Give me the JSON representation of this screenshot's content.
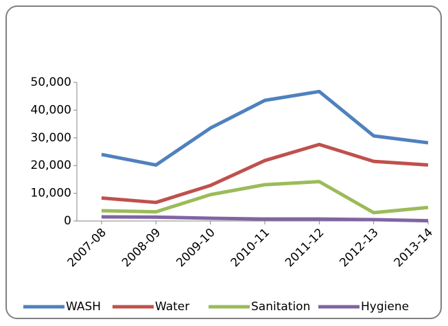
{
  "chart_data": {
    "type": "line",
    "categories": [
      "2007-08",
      "2008-09",
      "2009-10",
      "2010-11",
      "2011-12",
      "2012-13",
      "2013-14"
    ],
    "series": [
      {
        "name": "WASH",
        "color": "#4f81bd",
        "values": [
          24000,
          20200,
          33500,
          43500,
          46700,
          30700,
          28200
        ]
      },
      {
        "name": "Water",
        "color": "#c0504d",
        "values": [
          8300,
          6700,
          12800,
          21800,
          27600,
          21500,
          20200
        ]
      },
      {
        "name": "Sanitation",
        "color": "#9bbb59",
        "values": [
          3700,
          3300,
          9500,
          13100,
          14200,
          3000,
          4900
        ]
      },
      {
        "name": "Hygiene",
        "color": "#8064a2",
        "values": [
          1500,
          1400,
          1000,
          700,
          700,
          500,
          100
        ]
      }
    ],
    "ylim": [
      0,
      50000
    ],
    "yticks": [
      0,
      {
        "value": 10000,
        "label": "10,000"
      },
      {
        "value": 20000,
        "label": "20,000"
      },
      {
        "value": 30000,
        "label": "30,000"
      },
      {
        "value": 40000,
        "label": "40,000"
      },
      {
        "value": 50000,
        "label": "50,000"
      }
    ],
    "legend": "bottom"
  }
}
